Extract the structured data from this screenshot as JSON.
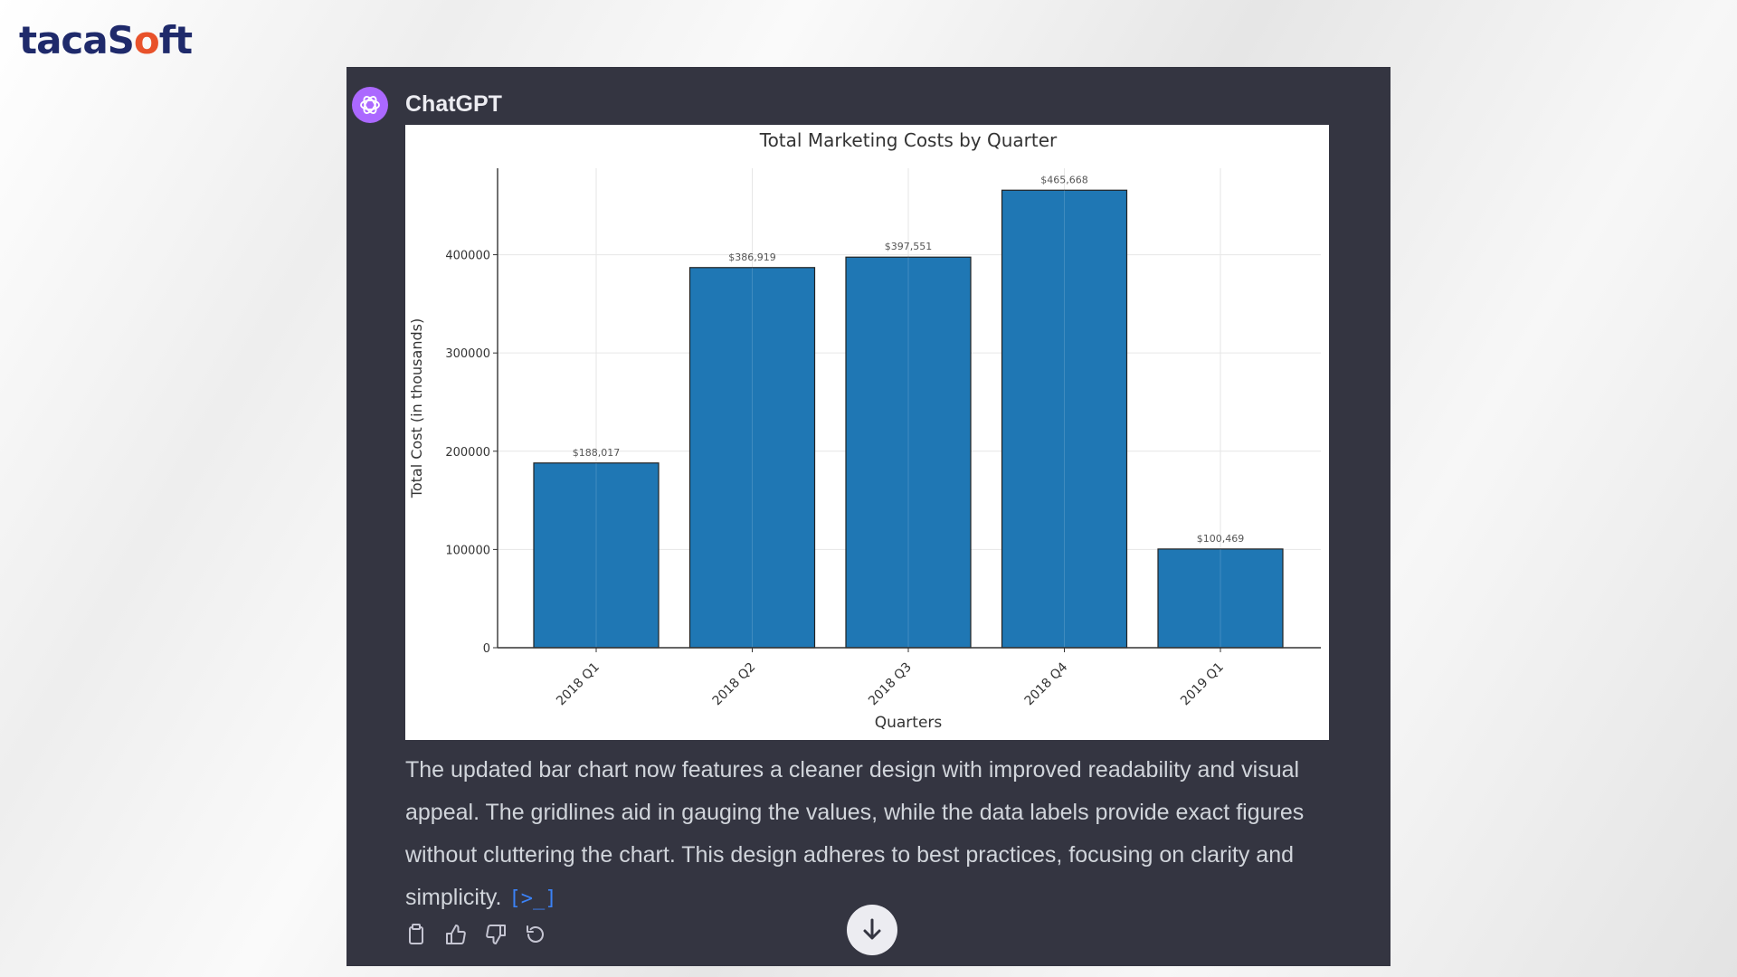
{
  "brand": {
    "logo_text_a": "tacaS",
    "logo_text_accent": "o",
    "logo_text_b": "ft"
  },
  "chat": {
    "sender": "ChatGPT",
    "message": "The updated bar chart now features a cleaner design with improved readability and visual appeal. The gridlines aid in gauging the values, while the data labels provide exact figures without cluttering the chart. This design adheres to best practices, focusing on clarity and simplicity.",
    "code_ref": "[>_]"
  },
  "actions": [
    {
      "icon": "copy-icon"
    },
    {
      "icon": "thumbs-up-icon"
    },
    {
      "icon": "thumbs-down-icon"
    },
    {
      "icon": "regenerate-icon"
    }
  ],
  "colors": {
    "panel_bg": "#343541",
    "bar": "#1f77b4",
    "avatar": "#ab68ff",
    "logo": "#1f2a6b",
    "logo_accent": "#e8522b"
  },
  "chart_data": {
    "type": "bar",
    "title": "Total Marketing Costs by Quarter",
    "xlabel": "Quarters",
    "ylabel": "Total Cost (in thousands)",
    "categories": [
      "2018 Q1",
      "2018 Q2",
      "2018 Q3",
      "2018 Q4",
      "2019 Q1"
    ],
    "values": [
      188017,
      386919,
      397551,
      465668,
      100469
    ],
    "data_labels": [
      "$188,017",
      "$386,919",
      "$397,551",
      "$465,668",
      "$100,469"
    ],
    "yticks": [
      "0",
      "100000",
      "200000",
      "300000",
      "400000"
    ],
    "ylim": [
      0,
      488000
    ],
    "grid": true
  }
}
